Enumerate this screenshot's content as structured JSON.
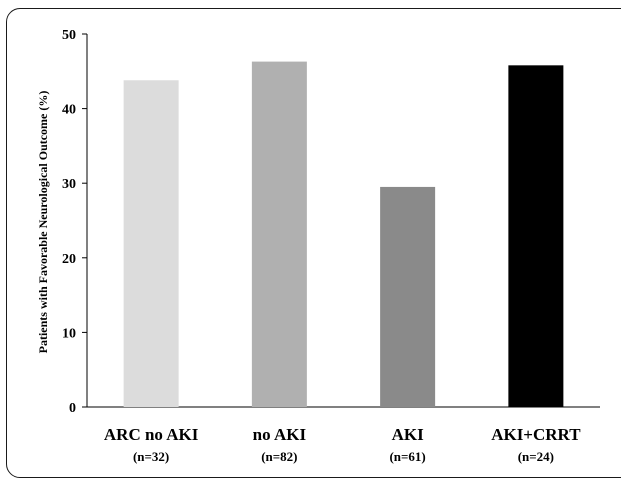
{
  "chart_data": {
    "type": "bar",
    "ylabel": "Patients with Favorable Neurological Outcome (%)",
    "ylim": [
      0,
      50
    ],
    "yticks": [
      "0",
      "10",
      "20",
      "30",
      "40",
      "50"
    ],
    "grid": false,
    "categories": [
      "ARC no AKI",
      "no AKI",
      "AKI",
      "AKI+CRRT"
    ],
    "n_labels": [
      "(n=32)",
      "(n=82)",
      "(n=61)",
      "(n=24)"
    ],
    "values": [
      43.8,
      46.3,
      29.5,
      45.8
    ],
    "colors": [
      "#dcdcdc",
      "#b0b0b0",
      "#8a8a8a",
      "#000000"
    ]
  }
}
